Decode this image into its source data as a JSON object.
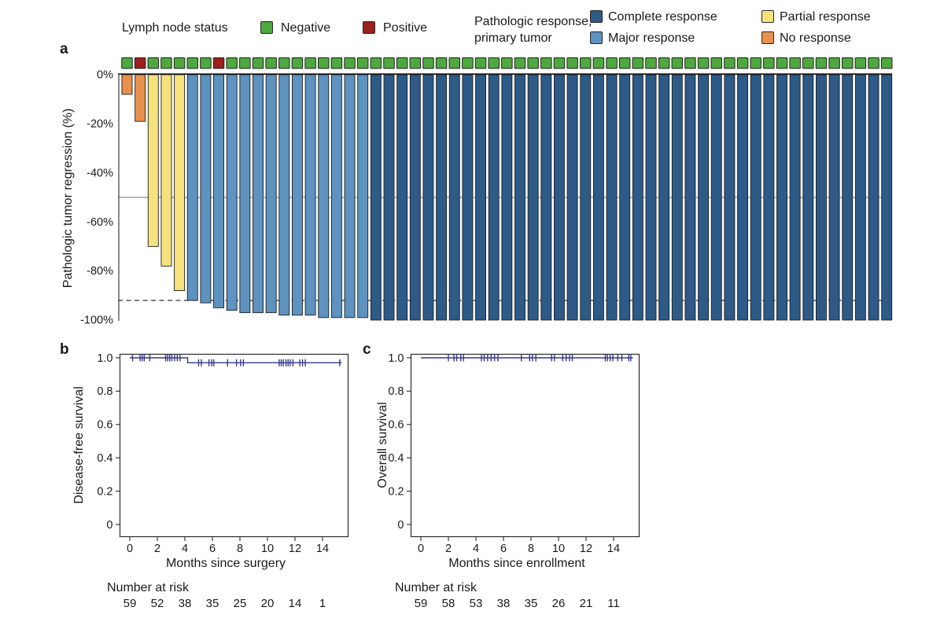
{
  "figure": {
    "background": "#ffffff",
    "panel_labels": {
      "a": "a",
      "b": "b",
      "c": "c"
    }
  },
  "legend": {
    "lymph": {
      "title": "Lymph node status",
      "items": [
        {
          "label": "Negative",
          "color": "#4FA83F"
        },
        {
          "label": "Positive",
          "color": "#9B201E"
        }
      ]
    },
    "response": {
      "title_line1": "Pathologic response,",
      "title_line2": "primary tumor",
      "items": [
        {
          "label": "Complete response",
          "key": "complete",
          "color": "#2D5A87"
        },
        {
          "label": "Major response",
          "key": "major",
          "color": "#5E92BF"
        },
        {
          "label": "Partial response",
          "key": "partial",
          "color": "#F6E27D"
        },
        {
          "label": "No response",
          "key": "none",
          "color": "#E8914E"
        }
      ]
    }
  },
  "chart_data": [
    {
      "id": "a",
      "type": "bar",
      "subtype": "waterfall",
      "ylabel": "Pathologic tumor regression (%)",
      "ylim": [
        0,
        -100
      ],
      "y_ticks": [
        {
          "label": "0%",
          "value": 0
        },
        {
          "label": "-20%",
          "value": -20
        },
        {
          "label": "-40%",
          "value": -40
        },
        {
          "label": "-60%",
          "value": -60
        },
        {
          "label": "-80%",
          "value": -80
        },
        {
          "label": "-100%",
          "value": -100
        }
      ],
      "values": [
        -8,
        -19,
        -70,
        -78,
        -88,
        -92,
        -93,
        -95,
        -96,
        -97,
        -97,
        -97,
        -98,
        -98,
        -98,
        -99,
        -99,
        -99,
        -99,
        -100,
        -100,
        -100,
        -100,
        -100,
        -100,
        -100,
        -100,
        -100,
        -100,
        -100,
        -100,
        -100,
        -100,
        -100,
        -100,
        -100,
        -100,
        -100,
        -100,
        -100,
        -100,
        -100,
        -100,
        -100,
        -100,
        -100,
        -100,
        -100,
        -100,
        -100,
        -100,
        -100,
        -100,
        -100,
        -100,
        -100,
        -100,
        -100,
        -100
      ],
      "response_groups": [
        {
          "category": "No response",
          "key": "none",
          "count": 2
        },
        {
          "category": "Partial response",
          "key": "partial",
          "count": 3
        },
        {
          "category": "Major response",
          "key": "major",
          "count": 14
        },
        {
          "category": "Complete response",
          "key": "complete",
          "count": 40
        }
      ],
      "lymph_node_positive_positions": [
        2,
        8
      ],
      "colors": {
        "complete": "#2D5A87",
        "major": "#5E92BF",
        "partial": "#F6E27D",
        "none": "#E8914E",
        "lymph_negative": "#4FA83F",
        "lymph_positive": "#9B201E"
      },
      "reference_lines": [
        {
          "value": -50,
          "style": "solid"
        },
        {
          "value": -92,
          "style": "dashed"
        }
      ]
    },
    {
      "id": "b",
      "type": "line",
      "subtype": "kaplan-meier",
      "ylabel": "Disease-free survival",
      "xlabel": "Months since surgery",
      "xlim": [
        0,
        15.8
      ],
      "ylim": [
        0,
        1.02
      ],
      "x_ticks": [
        0,
        2,
        4,
        6,
        8,
        10,
        12,
        14
      ],
      "y_ticks": [
        {
          "label": "1.0",
          "value": 1.0
        },
        {
          "label": "0.8",
          "value": 0.8
        },
        {
          "label": "0.6",
          "value": 0.6
        },
        {
          "label": "0.4",
          "value": 0.4
        },
        {
          "label": "0.2",
          "value": 0.2
        },
        {
          "label": "0",
          "value": 0
        }
      ],
      "curve_color": "#34388C",
      "steps": [
        {
          "t": 0,
          "s": 1.0
        },
        {
          "t": 4.2,
          "s": 0.97
        }
      ],
      "end_time": 15.4,
      "censor_times": [
        0.2,
        0.75,
        0.9,
        1.05,
        1.45,
        2.6,
        2.75,
        2.9,
        3.05,
        3.25,
        3.45,
        3.65,
        5.0,
        5.2,
        5.75,
        5.95,
        6.1,
        7.1,
        7.75,
        8.05,
        8.25,
        10.85,
        11.0,
        11.15,
        11.35,
        11.5,
        11.65,
        11.85,
        12.35,
        12.55,
        12.75,
        15.25
      ],
      "number_at_risk": {
        "label": "Number at risk",
        "times": [
          0,
          2,
          4,
          6,
          8,
          10,
          12,
          14
        ],
        "values": [
          59,
          52,
          38,
          35,
          25,
          20,
          14,
          1
        ]
      }
    },
    {
      "id": "c",
      "type": "line",
      "subtype": "kaplan-meier",
      "ylabel": "Overall survival",
      "xlabel": "Months since enrollment",
      "xlim": [
        0,
        15.8
      ],
      "ylim": [
        0,
        1.02
      ],
      "x_ticks": [
        0,
        2,
        4,
        6,
        8,
        10,
        12,
        14
      ],
      "y_ticks": [
        {
          "label": "1.0",
          "value": 1.0
        },
        {
          "label": "0.8",
          "value": 0.8
        },
        {
          "label": "0.6",
          "value": 0.6
        },
        {
          "label": "0.4",
          "value": 0.4
        },
        {
          "label": "0.2",
          "value": 0.2
        },
        {
          "label": "0",
          "value": 0
        }
      ],
      "curve_color": "#34388C",
      "steps": [
        {
          "t": 0,
          "s": 1.0
        }
      ],
      "end_time": 15.4,
      "censor_times": [
        2.0,
        2.4,
        2.6,
        2.9,
        3.1,
        4.4,
        4.6,
        4.85,
        5.1,
        5.35,
        5.6,
        7.3,
        7.9,
        8.1,
        8.35,
        9.5,
        9.7,
        10.3,
        10.55,
        10.8,
        11.0,
        13.4,
        13.55,
        13.75,
        13.95,
        14.3,
        14.6,
        15.1,
        15.25
      ],
      "number_at_risk": {
        "label": "Number at risk",
        "times": [
          0,
          2,
          4,
          6,
          8,
          10,
          12,
          14
        ],
        "values": [
          59,
          58,
          53,
          38,
          35,
          26,
          21,
          11
        ]
      }
    }
  ]
}
